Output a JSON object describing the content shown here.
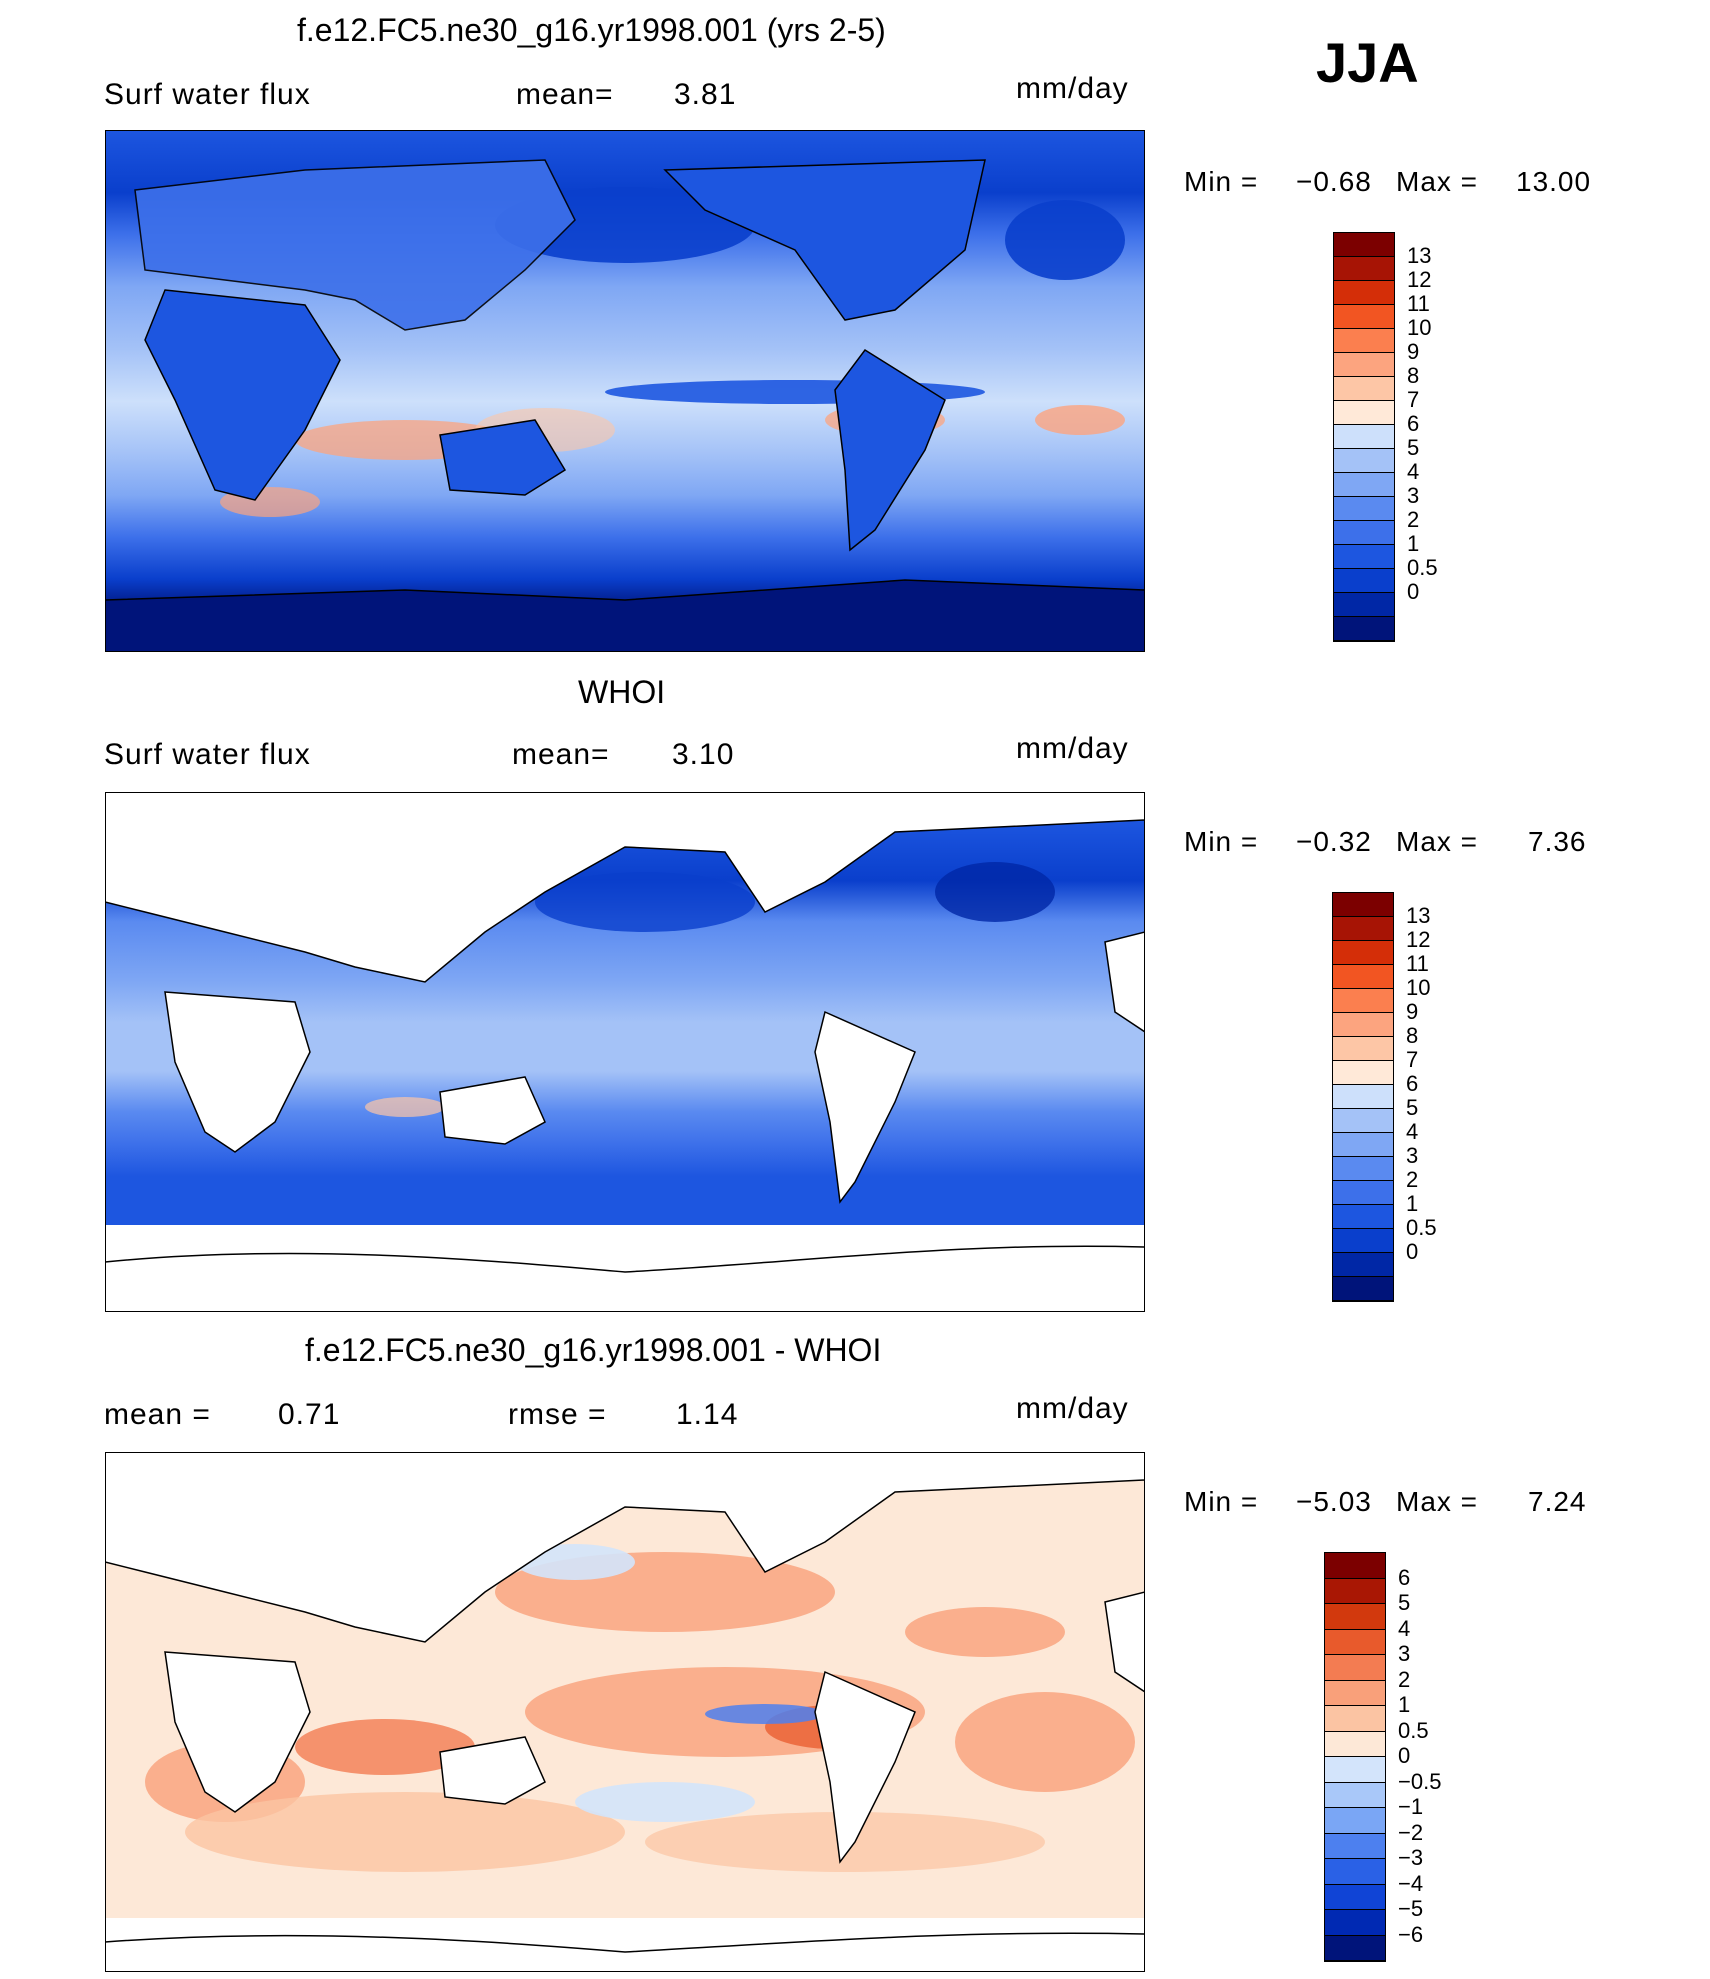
{
  "season": "JJA",
  "units": "mm/day",
  "colors": {
    "seq": [
      "#00147a",
      "#0027a6",
      "#0a3fcc",
      "#1d56e0",
      "#3d70ea",
      "#5a8af0",
      "#7fa7f4",
      "#a4c2f7",
      "#cde0fb",
      "#ffe9d8",
      "#fdc6a6",
      "#fca47f",
      "#fb7f4f",
      "#f25522",
      "#d42e08",
      "#a71405",
      "#7c0000"
    ],
    "diff": [
      "#00147a",
      "#0029b3",
      "#1044d6",
      "#2a61e6",
      "#4d80ef",
      "#7aa6f5",
      "#a9c8f9",
      "#d3e4fb",
      "#fde8d7",
      "#fbc4a3",
      "#f9a07a",
      "#f37c52",
      "#e85a2c",
      "#d2390d",
      "#a91704",
      "#7c0000"
    ]
  },
  "chart_data": [
    {
      "type": "heatmap",
      "title": "f.e12.FC5.ne30_g16.yr1998.001 (yrs 2-5)",
      "variable": "Surf water flux",
      "mean_label": "mean=",
      "mean": "3.81",
      "min_label": "Min =",
      "min": "−0.68",
      "max_label": "Max =",
      "max": "13.00",
      "levels": [
        "0",
        "0.5",
        "1",
        "2",
        "3",
        "4",
        "5",
        "6",
        "7",
        "8",
        "9",
        "10",
        "11",
        "12",
        "13"
      ],
      "x_range": [
        0,
        360
      ],
      "y_range": [
        -90,
        90
      ],
      "land_masked": false
    },
    {
      "type": "heatmap",
      "title": "WHOI",
      "variable": "Surf water flux",
      "mean_label": "mean=",
      "mean": "3.10",
      "min_label": "Min =",
      "min": "−0.32",
      "max_label": "Max =",
      "max": "7.36",
      "levels": [
        "0",
        "0.5",
        "1",
        "2",
        "3",
        "4",
        "5",
        "6",
        "7",
        "8",
        "9",
        "10",
        "11",
        "12",
        "13"
      ],
      "x_range": [
        0,
        360
      ],
      "y_range": [
        -90,
        90
      ],
      "land_masked": true
    },
    {
      "type": "heatmap",
      "title": "f.e12.FC5.ne30_g16.yr1998.001 - WHOI",
      "mean_label": "mean =",
      "mean": "0.71",
      "rmse_label": "rmse =",
      "rmse": "1.14",
      "min_label": "Min =",
      "min": "−5.03",
      "max_label": "Max =",
      "max": "7.24",
      "levels": [
        "−6",
        "−5",
        "−4",
        "−3",
        "−2",
        "−1",
        "−0.5",
        "0",
        "0.5",
        "1",
        "2",
        "3",
        "4",
        "5",
        "6"
      ],
      "x_range": [
        0,
        360
      ],
      "y_range": [
        -90,
        90
      ],
      "land_masked": true
    }
  ]
}
